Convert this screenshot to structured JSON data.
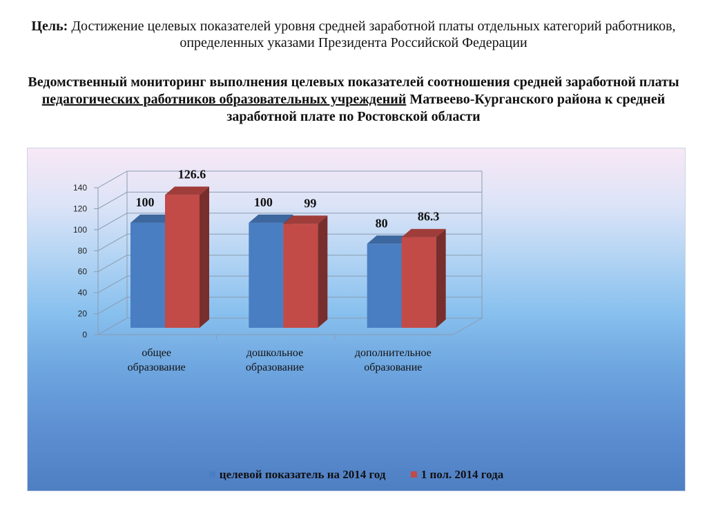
{
  "goal": {
    "prefix": "Цель:",
    "text": " Достижение целевых показателей уровня средней заработной платы отдельных категорий работников, определенных указами Президента Российской Федерации"
  },
  "monitor": {
    "part1": "Ведомственный мониторинг выполнения целевых показателей соотношения средней заработной платы ",
    "underlined": "педагогических работников образовательных учреждений",
    "part2": " Матвеево-Курганского района к средней заработной плате по Ростовской области"
  },
  "colors": {
    "series1": "#4a7ec2",
    "series2": "#c24a47"
  },
  "chart_data": {
    "type": "bar",
    "categories": [
      "общее образование",
      "дошкольное образование",
      "дополнительное образование"
    ],
    "series": [
      {
        "name": "целевой показатель на 2014 год",
        "values": [
          100,
          100,
          80
        ],
        "labels": [
          "100",
          "100",
          "80"
        ]
      },
      {
        "name": "1 пол. 2014 года",
        "values": [
          126.6,
          99,
          86.3
        ],
        "labels": [
          "126.6",
          "99",
          "86.3"
        ]
      }
    ],
    "ylim": [
      0,
      140
    ],
    "yticks": [
      "0",
      "20",
      "40",
      "60",
      "80",
      "100",
      "120",
      "140"
    ],
    "grid": true,
    "legend": "bottom",
    "three_d": true
  }
}
